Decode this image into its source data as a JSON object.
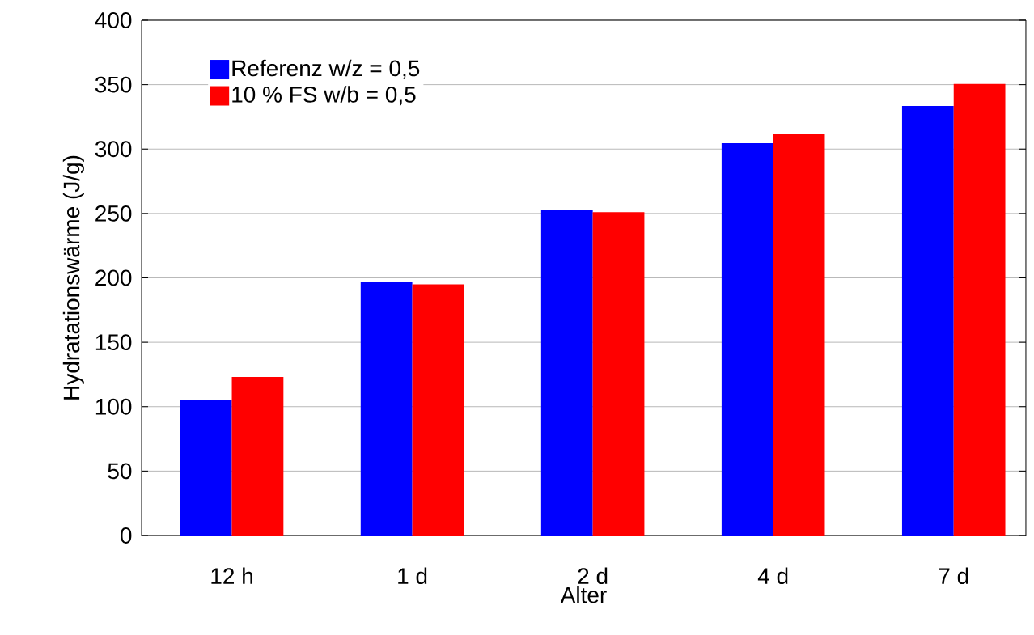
{
  "chart_data": {
    "type": "bar",
    "xlabel": "Alter",
    "ylabel": "Hydratationswärme (J/g)",
    "categories": [
      "12 h",
      "1 d",
      "2 d",
      "4 d",
      "7 d"
    ],
    "series": [
      {
        "name": "Referenz w/z = 0,5",
        "color": "#0000ff",
        "values": [
          105.5,
          196.5,
          253,
          304.5,
          333.5
        ]
      },
      {
        "name": "10 % FS w/b = 0,5",
        "color": "#ff0000",
        "values": [
          123,
          195,
          251,
          311.5,
          350.5
        ]
      }
    ],
    "ylim": [
      0,
      400
    ],
    "yticks": [
      0,
      50,
      100,
      150,
      200,
      250,
      300,
      350,
      400
    ],
    "grid": "y",
    "legend": "top left"
  }
}
